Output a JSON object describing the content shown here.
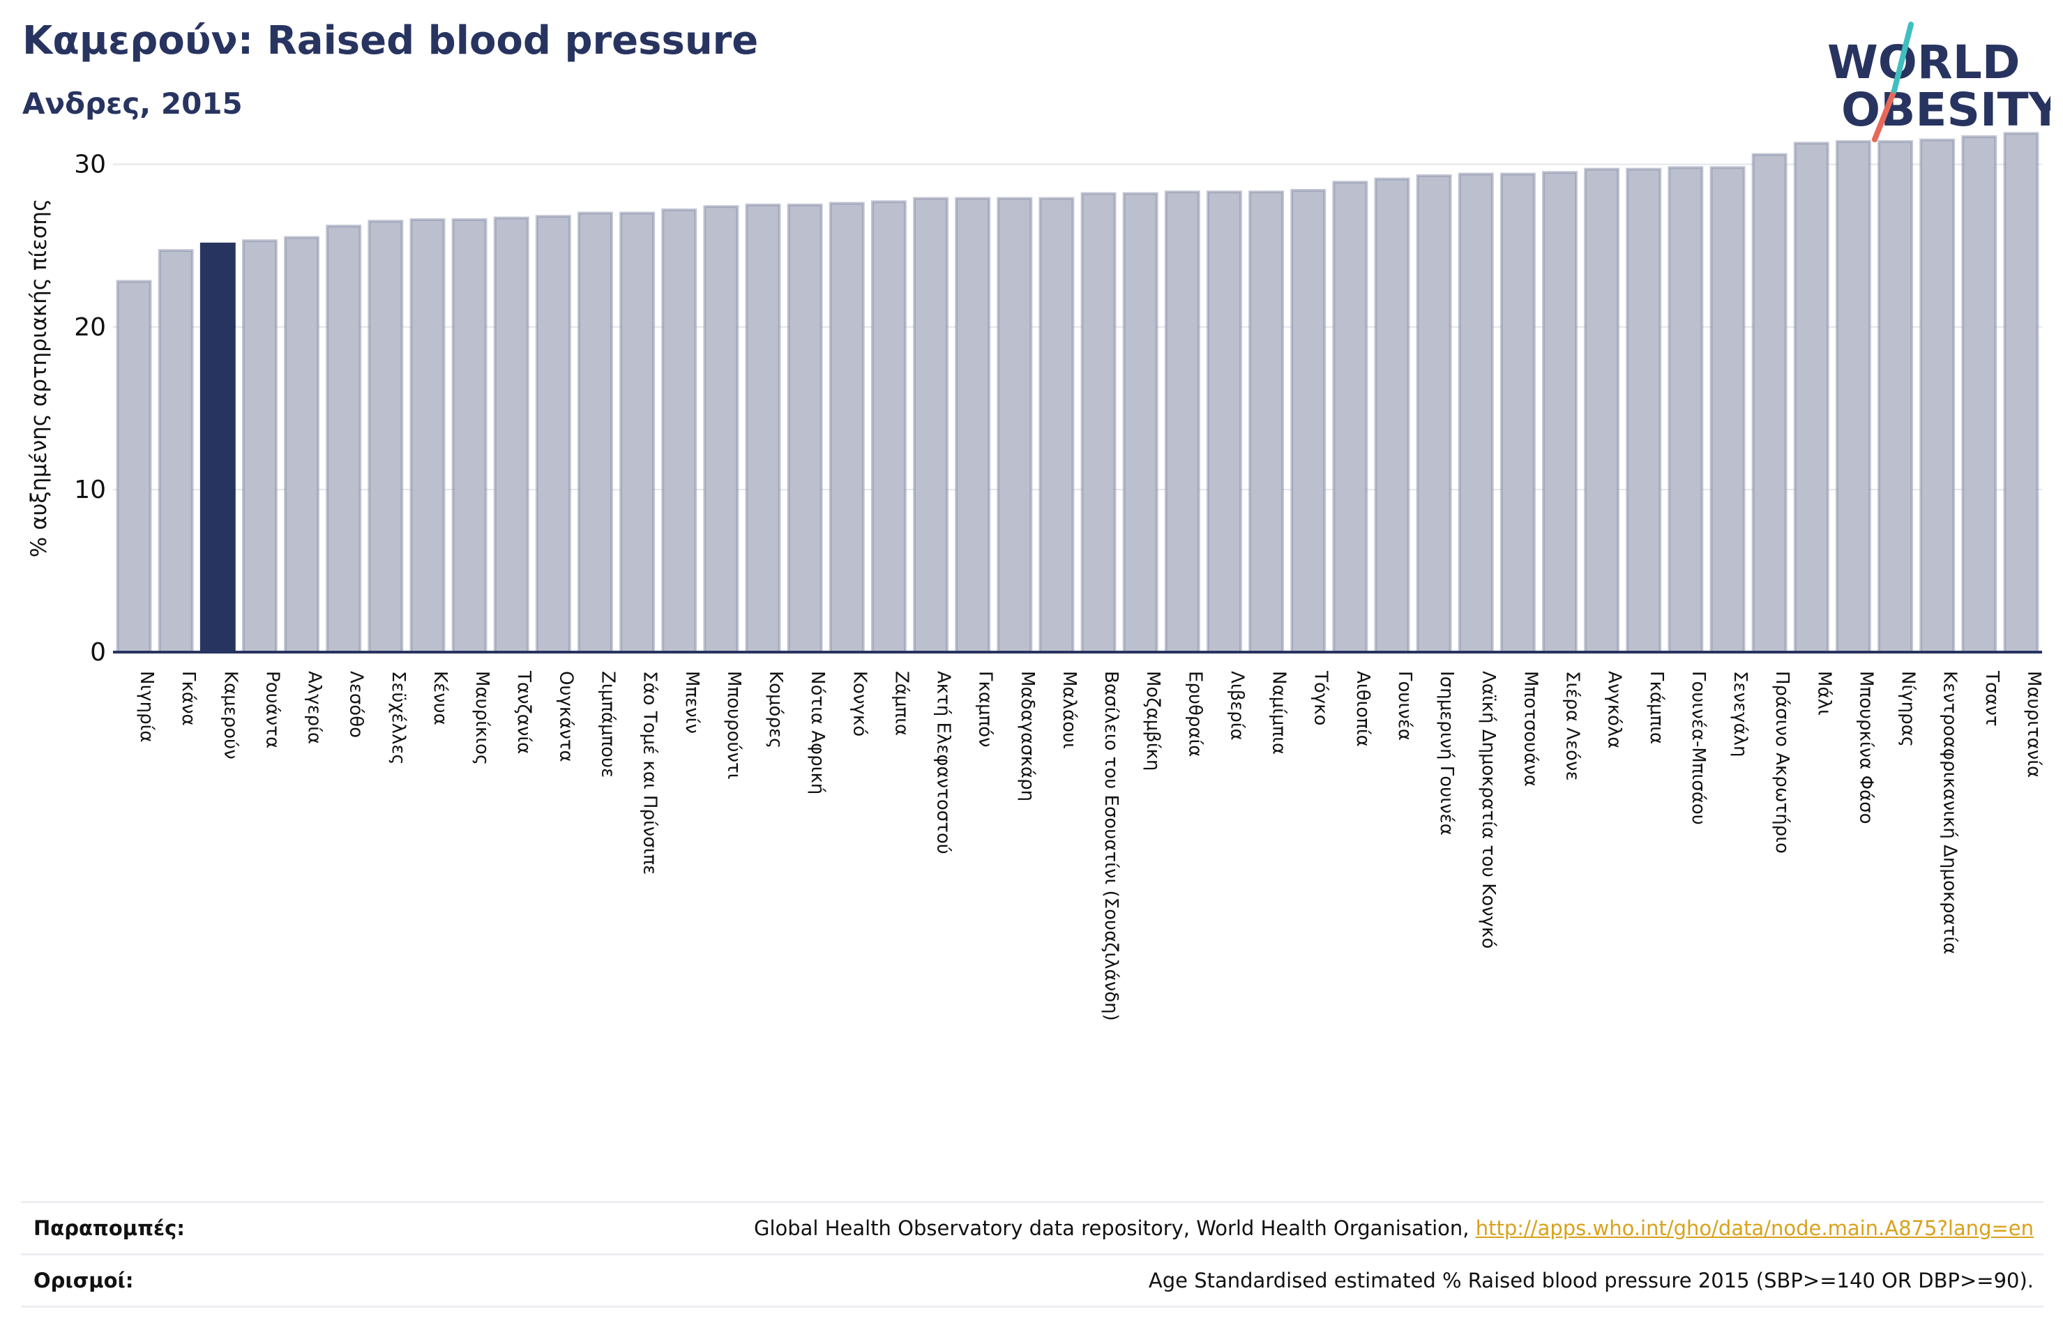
{
  "title": "Καμερούν: Raised blood pressure",
  "subtitle": "Ανδρες, 2015",
  "logo": {
    "line1": "WORLD",
    "line2": "OBESITY"
  },
  "colors": {
    "bar": "#bcc0ce",
    "bar_edge": "#8f95ae",
    "highlight": "#283460",
    "text": "#283460",
    "link": "#d9a21b"
  },
  "chart_data": {
    "type": "bar",
    "ylabel": "% αυξημένης αρτηριακής πίεσης",
    "ylim": [
      0,
      32
    ],
    "yticks": [
      0,
      10,
      20,
      30
    ],
    "grid": true,
    "highlight": "Καμερούν",
    "categories": [
      "Νιγηρία",
      "Γκάνα",
      "Καμερούν",
      "Ρουάντα",
      "Αλγερία",
      "Λεσόθο",
      "Σεϋχέλλες",
      "Κένυα",
      "Μαυρίκιος",
      "Τανζανία",
      "Ουγκάντα",
      "Ζιμπάμπουε",
      "Σάο Τομέ και Πρίνσιπε",
      "Μπενίν",
      "Μπουρούντι",
      "Κομόρες",
      "Νότια Αφρική",
      "Κονγκό",
      "Ζάμπια",
      "Ακτή Ελεφαντοστού",
      "Γκαμπόν",
      "Μαδαγασκάρη",
      "Μαλάουι",
      "Βασίλειο του Εσουατίνι (Σουαζιλάνδη)",
      "Μοζαμβίκη",
      "Ερυθραία",
      "Λιβερία",
      "Ναμίμπια",
      "Τόγκο",
      "Αιθιοπία",
      "Γουινέα",
      "Ισημερινή Γουινέα",
      "Λαϊκή Δημοκρατία του Κονγκό",
      "Μποτσουάνα",
      "Σιέρα Λεόνε",
      "Ανγκόλα",
      "Γκάμπια",
      "Γουινέα-Μπισάου",
      "Σενεγάλη",
      "Πράσινο Ακρωτήριο",
      "Μάλι",
      "Μπουρκίνα Φάσο",
      "Νίγηρας",
      "Κεντροαφρικανική Δημοκρατία",
      "Τσαντ",
      "Μαυριτανία"
    ],
    "values": [
      22.8,
      24.7,
      25.1,
      25.3,
      25.5,
      26.2,
      26.5,
      26.6,
      26.6,
      26.7,
      26.8,
      27.0,
      27.0,
      27.2,
      27.4,
      27.5,
      27.5,
      27.6,
      27.7,
      27.9,
      27.9,
      27.9,
      27.9,
      28.2,
      28.2,
      28.3,
      28.3,
      28.3,
      28.4,
      28.9,
      29.1,
      29.3,
      29.4,
      29.4,
      29.5,
      29.7,
      29.7,
      29.8,
      29.8,
      30.6,
      31.3,
      31.4,
      31.4,
      31.5,
      31.7,
      31.9
    ]
  },
  "footer": {
    "references_label": "Παραπομπές:",
    "references_text": "Global Health Observatory data repository, World Health Organisation,",
    "references_link": "http://apps.who.int/gho/data/node.main.A875?lang=en",
    "definitions_label": "Ορισμοί:",
    "definitions_text": "Age Standardised estimated % Raised blood pressure 2015 (SBP>=140 OR DBP>=90)."
  }
}
